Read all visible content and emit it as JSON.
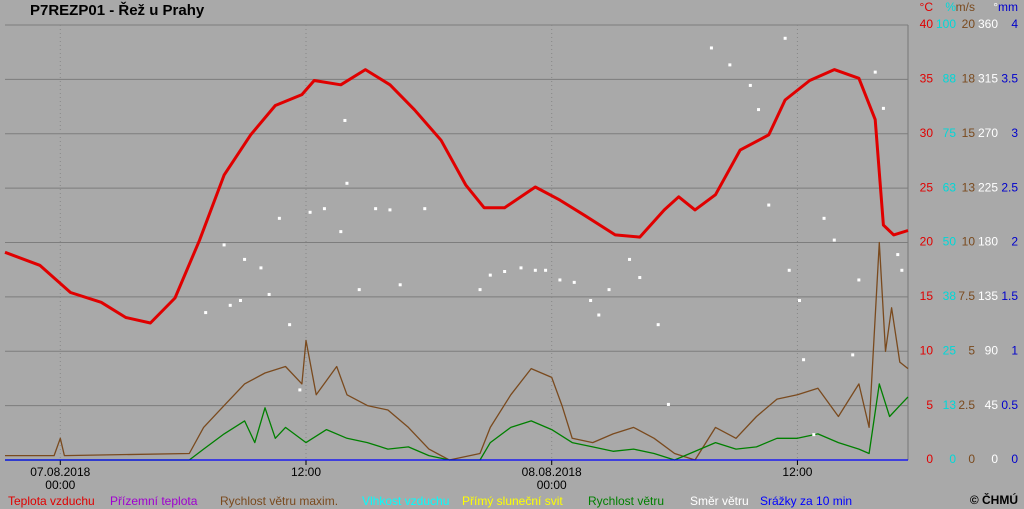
{
  "chart_data": {
    "type": "line",
    "title": "P7REZP01 - Řež u Prahy",
    "copyright": "© ČHMÚ",
    "xlim": [
      -2.7,
      41.4
    ],
    "xticks": [
      {
        "value": 0,
        "label": "07.08.2018 00:00"
      },
      {
        "value": 12,
        "label": "12:00"
      },
      {
        "value": 24,
        "label": "08.08.2018 00:00"
      },
      {
        "value": 36,
        "label": "12:00"
      }
    ],
    "grid": true,
    "axes": {
      "y": {
        "unit": "°C",
        "color": "#e00000",
        "ylim": [
          0,
          40
        ],
        "yticks": [
          0,
          5,
          10,
          15,
          20,
          25,
          30,
          35,
          40
        ]
      },
      "y2": {
        "unit": "%",
        "color": "#00d8d8",
        "ylim": [
          0,
          100
        ],
        "yticks": [
          0,
          {
            "value": 12.5,
            "label": "13"
          },
          25,
          {
            "value": 37.5,
            "label": "38"
          },
          50,
          {
            "value": 62.5,
            "label": "63"
          },
          75,
          {
            "value": 87.5,
            "label": "88"
          },
          100
        ]
      },
      "y3": {
        "unit": "m/s",
        "color": "#7a4a1e",
        "ylim": [
          0,
          20
        ],
        "yticks": [
          0,
          {
            "value": 2.5,
            "label": "2.5"
          },
          5,
          {
            "value": 7.5,
            "label": "7.5"
          },
          10,
          {
            "value": 12.5,
            "label": "13"
          },
          15,
          {
            "value": 17.5,
            "label": "18"
          },
          20
        ]
      },
      "y4": {
        "unit": "°",
        "color": "#ffffff",
        "ylim": [
          0,
          360
        ],
        "yticks": [
          0,
          45,
          90,
          135,
          180,
          225,
          270,
          315,
          360
        ]
      },
      "y5": {
        "unit": "mm",
        "color": "#0000cc",
        "ylim": [
          0,
          4
        ],
        "yticks": [
          0,
          0.5,
          1,
          1.5,
          2,
          2.5,
          3,
          3.5,
          4
        ]
      }
    },
    "series": [
      {
        "name": "Teplota vzduchu",
        "color": "#e00000",
        "axis": "y",
        "kind": "line",
        "x": [
          -2.7,
          -1,
          0.5,
          2,
          3.2,
          4.4,
          5.6,
          6.8,
          8.0,
          9.3,
          10.5,
          11.8,
          12.4,
          13.7,
          14.9,
          16.1,
          17.3,
          18.6,
          19.8,
          20.7,
          21.7,
          23.2,
          24.4,
          25.6,
          27.1,
          28.3,
          29.5,
          30.2,
          31.0,
          32.0,
          33.2,
          34.6,
          35.4,
          36.6,
          37.8,
          39.0,
          39.8,
          40.2,
          40.7,
          41.4
        ],
        "values": [
          19.1,
          17.9,
          15.4,
          14.5,
          13.1,
          12.6,
          14.9,
          20.2,
          26.2,
          29.9,
          32.6,
          33.6,
          34.9,
          34.5,
          35.9,
          34.5,
          32.2,
          29.4,
          25.3,
          23.2,
          23.2,
          25.1,
          23.9,
          22.5,
          20.7,
          20.5,
          23.0,
          24.2,
          23.0,
          24.4,
          28.5,
          29.9,
          33.1,
          34.9,
          35.9,
          35.1,
          31.3,
          21.6,
          20.7,
          21.1
        ]
      },
      {
        "name": "Přízemní teplota",
        "color": "#a000d0",
        "axis": "y",
        "kind": "line",
        "x": [],
        "values": []
      },
      {
        "name": "Rychlost větru maxim.",
        "color": "#7a4a1e",
        "axis": "y3",
        "kind": "line",
        "x": [
          -2.7,
          -0.3,
          0,
          0.2,
          6.3,
          7,
          8,
          9,
          10,
          11,
          11.8,
          12,
          12.5,
          13.5,
          14,
          15,
          16,
          17,
          18,
          19,
          20.5,
          21,
          22,
          23,
          24,
          24.5,
          25,
          26,
          27,
          28,
          29,
          30,
          31,
          32,
          33,
          34,
          35,
          36,
          37,
          38,
          39,
          39.5,
          40,
          40.3,
          40.6,
          41,
          41.4
        ],
        "values": [
          0.2,
          0.2,
          1.0,
          0.2,
          0.3,
          1.5,
          2.5,
          3.5,
          4.0,
          4.3,
          3.5,
          5.5,
          3.0,
          4.3,
          3.0,
          2.5,
          2.3,
          1.5,
          0.5,
          0,
          0.3,
          1.5,
          3.0,
          4.2,
          3.8,
          2.5,
          1.0,
          0.8,
          1.2,
          1.5,
          1.0,
          0.3,
          0,
          1.5,
          1.0,
          2.0,
          2.8,
          3.0,
          3.3,
          2.0,
          3.5,
          1.5,
          10.0,
          5.0,
          7.0,
          4.5,
          4.2
        ]
      },
      {
        "name": "Vlhkost vzduchu",
        "color": "#00ffff",
        "axis": "y2",
        "kind": "line",
        "x": [],
        "values": []
      },
      {
        "name": "Přímý sluneční svit",
        "color": "#ffff00",
        "axis": "y",
        "kind": "line",
        "x": [],
        "values": []
      },
      {
        "name": "Rychlost větru",
        "color": "#008000",
        "axis": "y3",
        "kind": "line",
        "x": [
          -2.7,
          6.3,
          7,
          8,
          9,
          9.5,
          10,
          10.5,
          11,
          12,
          13,
          14,
          15,
          16,
          17,
          18,
          19,
          20.5,
          21,
          22,
          23,
          24,
          25,
          26,
          27,
          28,
          29,
          30,
          32,
          33,
          34,
          35,
          36,
          37,
          38,
          39,
          39.5,
          40,
          40.5,
          41,
          41.4
        ],
        "values": [
          0,
          0,
          0.5,
          1.2,
          1.8,
          0.8,
          2.4,
          1.0,
          1.5,
          0.8,
          1.4,
          1.0,
          0.8,
          0.5,
          0.6,
          0.2,
          0,
          0,
          0.8,
          1.5,
          1.8,
          1.4,
          0.8,
          0.6,
          0.4,
          0.5,
          0.3,
          0,
          0.8,
          0.5,
          0.6,
          1.0,
          1.0,
          1.2,
          0.8,
          0.5,
          0.3,
          3.5,
          2.0,
          2.5,
          2.9
        ]
      },
      {
        "name": "Směr větru",
        "color": "#ffffff",
        "axis": "y4",
        "kind": "scatter",
        "x": [
          7.1,
          8.0,
          8.3,
          8.8,
          9.0,
          9.8,
          10.2,
          10.7,
          11.2,
          11.7,
          12.2,
          12.9,
          13.7,
          13.9,
          14.0,
          14.6,
          15.4,
          16.1,
          16.6,
          17.8,
          20.5,
          21.0,
          21.7,
          22.5,
          23.2,
          23.7,
          24.4,
          25.1,
          25.9,
          26.3,
          26.8,
          27.8,
          28.3,
          29.2,
          29.7,
          31.8,
          32.7,
          33.7,
          34.1,
          34.6,
          35.4,
          35.6,
          36.1,
          36.3,
          36.8,
          37.3,
          37.8,
          38.7,
          39.0,
          39.8,
          40.2,
          40.9,
          41.1
        ],
        "values": [
          122,
          178,
          128,
          132,
          166,
          159,
          137,
          200,
          112,
          58,
          205,
          208,
          189,
          281,
          229,
          141,
          208,
          207,
          145,
          208,
          141,
          153,
          156,
          159,
          157,
          157,
          149,
          147,
          132,
          120,
          141,
          166,
          151,
          112,
          46,
          341,
          327,
          310,
          290,
          211,
          349,
          157,
          132,
          83,
          21,
          200,
          182,
          87,
          149,
          321,
          291,
          170,
          157
        ]
      },
      {
        "name": "Srážky za 10 min",
        "color": "#0000ff",
        "axis": "y5",
        "kind": "line",
        "x": [
          -2.7,
          41.4
        ],
        "values": [
          0,
          0
        ]
      }
    ]
  }
}
